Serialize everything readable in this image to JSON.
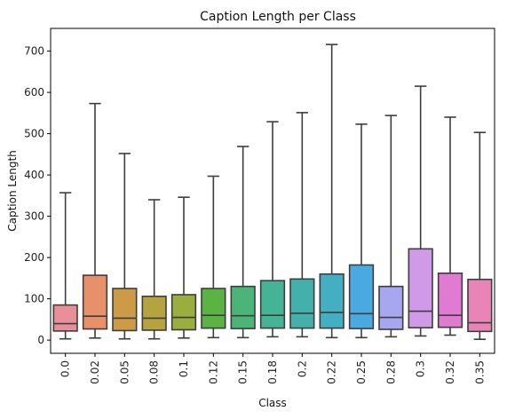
{
  "chart_data": {
    "type": "box",
    "title": "Caption Length per Class",
    "xlabel": "Class",
    "ylabel": "Caption Length",
    "ylim": [
      -32,
      755
    ],
    "yticks": [
      0,
      100,
      200,
      300,
      400,
      500,
      600,
      700
    ],
    "grid": false,
    "categories": [
      "0.0",
      "0.02",
      "0.05",
      "0.08",
      "0.1",
      "0.12",
      "0.15",
      "0.18",
      "0.2",
      "0.22",
      "0.25",
      "0.28",
      "0.3",
      "0.32",
      "0.35"
    ],
    "boxes": [
      {
        "class": "0.0",
        "whisker_low": 3,
        "q1": 22,
        "median": 40,
        "q3": 85,
        "whisker_high": 357,
        "color": "#e8909a"
      },
      {
        "class": "0.02",
        "whisker_low": 5,
        "q1": 27,
        "median": 58,
        "q3": 157,
        "whisker_high": 573,
        "color": "#e8906a"
      },
      {
        "class": "0.05",
        "whisker_low": 3,
        "q1": 23,
        "median": 53,
        "q3": 125,
        "whisker_high": 452,
        "color": "#cd9a48"
      },
      {
        "class": "0.08",
        "whisker_low": 3,
        "q1": 24,
        "median": 53,
        "q3": 106,
        "whisker_high": 340,
        "color": "#b5a340"
      },
      {
        "class": "0.1",
        "whisker_low": 5,
        "q1": 25,
        "median": 55,
        "q3": 110,
        "whisker_high": 346,
        "color": "#9aad3f"
      },
      {
        "class": "0.12",
        "whisker_low": 6,
        "q1": 29,
        "median": 60,
        "q3": 125,
        "whisker_high": 397,
        "color": "#5bb343"
      },
      {
        "class": "0.15",
        "whisker_low": 6,
        "q1": 28,
        "median": 59,
        "q3": 130,
        "whisker_high": 469,
        "color": "#4ab577"
      },
      {
        "class": "0.18",
        "whisker_low": 8,
        "q1": 29,
        "median": 60,
        "q3": 144,
        "whisker_high": 529,
        "color": "#44b396"
      },
      {
        "class": "0.2",
        "whisker_low": 8,
        "q1": 29,
        "median": 65,
        "q3": 148,
        "whisker_high": 551,
        "color": "#44b0ab"
      },
      {
        "class": "0.22",
        "whisker_low": 6,
        "q1": 29,
        "median": 67,
        "q3": 160,
        "whisker_high": 716,
        "color": "#44aec2"
      },
      {
        "class": "0.25",
        "whisker_low": 6,
        "q1": 28,
        "median": 64,
        "q3": 182,
        "whisker_high": 523,
        "color": "#4aa9e0"
      },
      {
        "class": "0.28",
        "whisker_low": 8,
        "q1": 26,
        "median": 55,
        "q3": 130,
        "whisker_high": 544,
        "color": "#a6a7ef"
      },
      {
        "class": "0.3",
        "whisker_low": 10,
        "q1": 30,
        "median": 70,
        "q3": 221,
        "whisker_high": 615,
        "color": "#d09ae8"
      },
      {
        "class": "0.32",
        "whisker_low": 12,
        "q1": 31,
        "median": 60,
        "q3": 162,
        "whisker_high": 540,
        "color": "#e07ad3"
      },
      {
        "class": "0.35",
        "whisker_low": 2,
        "q1": 21,
        "median": 42,
        "q3": 147,
        "whisker_high": 503,
        "color": "#e985b6"
      }
    ]
  }
}
